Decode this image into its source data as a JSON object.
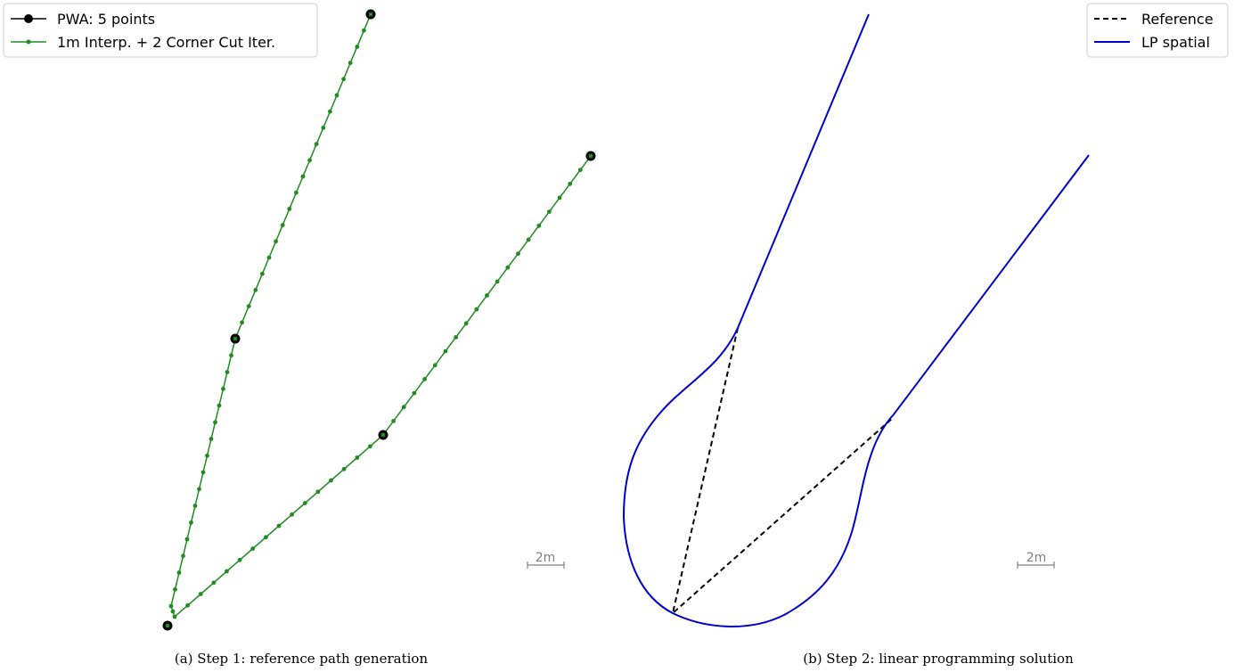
{
  "panels": [
    {
      "id": "a",
      "caption": "(a) Step 1: reference path generation",
      "scale_bar_label": "2m",
      "legend": [
        {
          "label": "PWA: 5 points",
          "color": "#000000",
          "style": "solid-big-marker"
        },
        {
          "label": "1m Interp. + 2 Corner Cut Iter.",
          "color": "#228b22",
          "style": "solid-small-marker"
        }
      ]
    },
    {
      "id": "b",
      "caption": "(b) Step 2: linear programming solution",
      "scale_bar_label": "2m",
      "legend": [
        {
          "label": "Reference",
          "color": "#000000",
          "style": "dashed"
        },
        {
          "label": "LP spatial",
          "color": "#0000cc",
          "style": "solid"
        }
      ]
    }
  ],
  "colors": {
    "pwa": "#000000",
    "interp": "#228b22",
    "reference": "#000000",
    "lp": "#0000cc",
    "scale": "#808080"
  }
}
